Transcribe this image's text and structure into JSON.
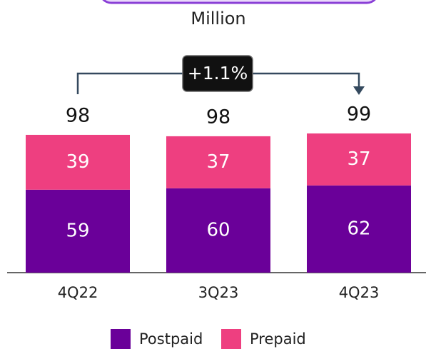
{
  "chart_data": {
    "type": "stacked_bar",
    "subtitle": "Million",
    "categories": [
      "4Q22",
      "3Q23",
      "4Q23"
    ],
    "series": [
      {
        "name": "Postpaid",
        "color": "#6a0099",
        "values": [
          59,
          60,
          62
        ]
      },
      {
        "name": "Prepaid",
        "color": "#ee3f80",
        "values": [
          39,
          37,
          37
        ]
      }
    ],
    "totals": [
      98,
      98,
      99
    ],
    "annotation": "+1.1%"
  }
}
